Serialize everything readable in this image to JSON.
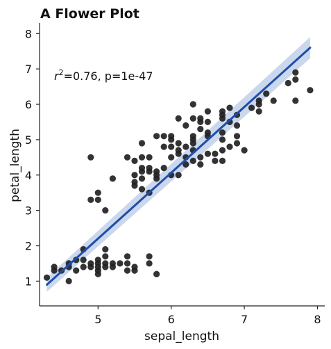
{
  "chart_data": {
    "type": "scatter",
    "title": "A Flower Plot",
    "xlabel": "sepal_length",
    "ylabel": "petal_length",
    "xlim": [
      4.2,
      8.1
    ],
    "ylim": [
      0.3,
      8.3
    ],
    "xticks": [
      "5",
      "6",
      "7",
      "8"
    ],
    "yticks": [
      "1",
      "2",
      "3",
      "4",
      "5",
      "6",
      "7",
      "8"
    ],
    "annotation": {
      "r": "r",
      "sup": "2",
      "rest": "=0.76, p=1e-47"
    },
    "regression": {
      "x": [
        4.3,
        7.9
      ],
      "y": [
        0.9,
        7.6
      ],
      "ci_low_start": 0.7,
      "ci_high_start": 1.1,
      "ci_low_end": 7.3,
      "ci_high_end": 7.9
    },
    "grid": false,
    "legend": "none",
    "colors": {
      "points": "#222222",
      "line": "#1f4ea8",
      "ci": "#b9c9e6"
    },
    "points": [
      [
        4.3,
        1.1
      ],
      [
        4.4,
        1.3
      ],
      [
        4.4,
        1.4
      ],
      [
        4.5,
        1.3
      ],
      [
        4.6,
        1.4
      ],
      [
        4.6,
        1.5
      ],
      [
        4.6,
        1.0
      ],
      [
        4.7,
        1.3
      ],
      [
        4.7,
        1.6
      ],
      [
        4.8,
        1.4
      ],
      [
        4.8,
        1.6
      ],
      [
        4.8,
        1.9
      ],
      [
        4.9,
        1.4
      ],
      [
        4.9,
        1.5
      ],
      [
        5.0,
        1.2
      ],
      [
        5.0,
        1.3
      ],
      [
        5.0,
        1.4
      ],
      [
        5.0,
        1.5
      ],
      [
        5.0,
        1.6
      ],
      [
        5.1,
        1.4
      ],
      [
        5.1,
        1.5
      ],
      [
        5.1,
        1.7
      ],
      [
        5.1,
        1.9
      ],
      [
        5.2,
        1.4
      ],
      [
        5.2,
        1.5
      ],
      [
        5.3,
        1.5
      ],
      [
        5.4,
        1.3
      ],
      [
        5.4,
        1.5
      ],
      [
        5.4,
        1.7
      ],
      [
        5.5,
        1.3
      ],
      [
        5.5,
        1.4
      ],
      [
        5.7,
        1.5
      ],
      [
        5.7,
        1.7
      ],
      [
        5.8,
        1.2
      ],
      [
        4.9,
        4.5
      ],
      [
        4.9,
        3.3
      ],
      [
        5.0,
        3.3
      ],
      [
        5.0,
        3.5
      ],
      [
        5.1,
        3.0
      ],
      [
        5.2,
        3.9
      ],
      [
        5.4,
        4.5
      ],
      [
        5.5,
        3.7
      ],
      [
        5.5,
        3.8
      ],
      [
        5.5,
        4.0
      ],
      [
        5.5,
        4.4
      ],
      [
        5.6,
        3.6
      ],
      [
        5.6,
        3.9
      ],
      [
        5.6,
        4.1
      ],
      [
        5.6,
        4.2
      ],
      [
        5.6,
        4.5
      ],
      [
        5.6,
        4.9
      ],
      [
        5.7,
        3.5
      ],
      [
        5.7,
        4.1
      ],
      [
        5.7,
        4.2
      ],
      [
        5.7,
        4.5
      ],
      [
        5.8,
        3.9
      ],
      [
        5.8,
        4.0
      ],
      [
        5.8,
        4.1
      ],
      [
        5.8,
        5.1
      ],
      [
        5.9,
        4.2
      ],
      [
        5.9,
        4.8
      ],
      [
        5.9,
        5.1
      ],
      [
        6.0,
        4.0
      ],
      [
        6.0,
        4.5
      ],
      [
        6.0,
        4.8
      ],
      [
        6.0,
        5.0
      ],
      [
        6.0,
        5.1
      ],
      [
        6.1,
        4.0
      ],
      [
        6.1,
        4.6
      ],
      [
        6.1,
        4.7
      ],
      [
        6.1,
        4.9
      ],
      [
        6.1,
        5.6
      ],
      [
        6.2,
        4.3
      ],
      [
        6.2,
        4.5
      ],
      [
        6.2,
        4.8
      ],
      [
        6.2,
        5.4
      ],
      [
        6.3,
        4.4
      ],
      [
        6.3,
        4.7
      ],
      [
        6.3,
        4.9
      ],
      [
        6.3,
        5.0
      ],
      [
        6.3,
        5.1
      ],
      [
        6.3,
        5.6
      ],
      [
        6.3,
        6.0
      ],
      [
        6.4,
        4.3
      ],
      [
        6.4,
        4.5
      ],
      [
        6.4,
        5.3
      ],
      [
        6.4,
        5.5
      ],
      [
        6.4,
        5.6
      ],
      [
        6.5,
        4.6
      ],
      [
        6.5,
        5.1
      ],
      [
        6.5,
        5.2
      ],
      [
        6.5,
        5.5
      ],
      [
        6.5,
        5.8
      ],
      [
        6.6,
        4.4
      ],
      [
        6.6,
        4.6
      ],
      [
        6.7,
        4.4
      ],
      [
        6.7,
        4.7
      ],
      [
        6.7,
        5.0
      ],
      [
        6.7,
        5.2
      ],
      [
        6.7,
        5.6
      ],
      [
        6.7,
        5.7
      ],
      [
        6.7,
        5.8
      ],
      [
        6.8,
        4.8
      ],
      [
        6.8,
        5.5
      ],
      [
        6.8,
        5.9
      ],
      [
        6.9,
        4.9
      ],
      [
        6.9,
        5.1
      ],
      [
        6.9,
        5.4
      ],
      [
        6.9,
        5.7
      ],
      [
        7.0,
        4.7
      ],
      [
        7.1,
        5.9
      ],
      [
        7.2,
        5.8
      ],
      [
        7.2,
        6.0
      ],
      [
        7.2,
        6.1
      ],
      [
        7.3,
        6.3
      ],
      [
        7.4,
        6.1
      ],
      [
        7.6,
        6.6
      ],
      [
        7.7,
        6.1
      ],
      [
        7.7,
        6.7
      ],
      [
        7.7,
        6.9
      ],
      [
        7.9,
        6.4
      ]
    ]
  }
}
